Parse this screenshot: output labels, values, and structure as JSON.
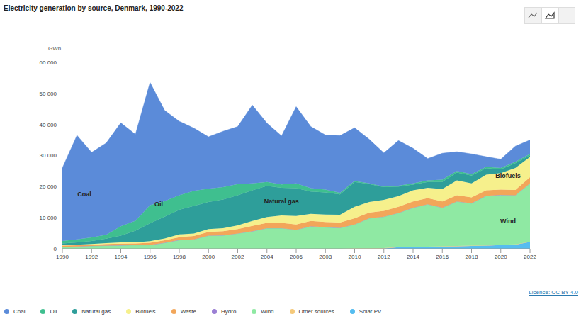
{
  "chart_data": {
    "type": "area",
    "title": "Electricity generation by source, Denmark, 1990-2022",
    "y_label": "GWh",
    "caption": "Licence: CC BY 4.0",
    "stacked": true,
    "grid": false,
    "legend": "bottom",
    "x": [
      1990,
      1991,
      1992,
      1993,
      1994,
      1995,
      1996,
      1997,
      1998,
      1999,
      2000,
      2001,
      2002,
      2003,
      2004,
      2005,
      2006,
      2007,
      2008,
      2009,
      2010,
      2011,
      2012,
      2013,
      2014,
      2015,
      2016,
      2017,
      2018,
      2019,
      2020,
      2021,
      2022
    ],
    "xlim": [
      1990,
      2022
    ],
    "xticks": [
      1990,
      1992,
      1994,
      1996,
      1998,
      2000,
      2002,
      2004,
      2006,
      2008,
      2010,
      2012,
      2014,
      2016,
      2018,
      2020,
      2022
    ],
    "ylim": [
      0,
      60000
    ],
    "yticks": [
      0,
      {
        "value": 10000,
        "label": "10 000"
      },
      {
        "value": 20000,
        "label": "20 000"
      },
      {
        "value": 30000,
        "label": "30 000"
      },
      {
        "value": 40000,
        "label": "40 000"
      },
      {
        "value": 50000,
        "label": "50 000"
      },
      {
        "value": 60000,
        "label": "60 000"
      }
    ],
    "series": [
      {
        "name": "Coal",
        "color": "#5b8bd9",
        "values": [
          23500,
          33500,
          27400,
          29500,
          33300,
          27800,
          39500,
          29200,
          23800,
          20200,
          16700,
          18000,
          18500,
          25200,
          18900,
          15600,
          24700,
          19800,
          17600,
          18400,
          17100,
          14200,
          10800,
          14500,
          11300,
          7000,
          8500,
          6200,
          6500,
          3300,
          2800,
          5000,
          4500
        ]
      },
      {
        "name": "Oil",
        "color": "#3fbf8f",
        "values": [
          800,
          1000,
          1100,
          1300,
          3000,
          3200,
          5800,
          5000,
          4700,
          4800,
          4300,
          4000,
          3600,
          2200,
          1300,
          1100,
          1500,
          1100,
          900,
          500,
          300,
          200,
          200,
          300,
          400,
          500,
          700,
          500,
          500,
          400,
          500,
          500,
          500
        ]
      },
      {
        "name": "Natural gas",
        "color": "#2e9e9a",
        "values": [
          500,
          700,
          1000,
          1400,
          2200,
          3800,
          5800,
          7000,
          7900,
          8900,
          8700,
          9200,
          9700,
          9900,
          10000,
          8900,
          9000,
          7200,
          7100,
          6600,
          8000,
          5800,
          4100,
          3100,
          1800,
          1900,
          2300,
          2500,
          2500,
          2100,
          1200,
          1500,
          500
        ]
      },
      {
        "name": "Biofuels",
        "color": "#f6f08c",
        "values": [
          200,
          200,
          300,
          300,
          400,
          300,
          500,
          600,
          900,
          800,
          900,
          1000,
          1200,
          1600,
          1900,
          2400,
          2700,
          2300,
          2400,
          2500,
          3700,
          3400,
          3500,
          3400,
          3600,
          3300,
          4000,
          4800,
          4500,
          5000,
          5300,
          7100,
          6500
        ]
      },
      {
        "name": "Waste",
        "color": "#f2a65a",
        "values": [
          400,
          400,
          300,
          500,
          500,
          500,
          700,
          800,
          900,
          1100,
          1200,
          1300,
          1400,
          1700,
          1700,
          1700,
          1700,
          1700,
          1700,
          1700,
          2000,
          1800,
          1900,
          2000,
          2000,
          2000,
          2000,
          2000,
          1900,
          1800,
          1700,
          1700,
          2000
        ]
      },
      {
        "name": "Hydro",
        "color": "#9b7fd4",
        "values": [
          30,
          30,
          30,
          30,
          30,
          30,
          30,
          30,
          30,
          30,
          30,
          30,
          30,
          30,
          30,
          30,
          30,
          30,
          30,
          30,
          30,
          30,
          30,
          30,
          30,
          30,
          30,
          30,
          30,
          30,
          30,
          30,
          30
        ]
      },
      {
        "name": "Wind",
        "color": "#8fe9a3",
        "values": [
          600,
          700,
          900,
          1000,
          1100,
          1200,
          1200,
          1900,
          2800,
          3000,
          4200,
          4300,
          4900,
          5600,
          6600,
          6600,
          6100,
          7200,
          6900,
          6700,
          7700,
          9700,
          10100,
          10900,
          12500,
          13600,
          12400,
          14300,
          13600,
          15900,
          16000,
          15800,
          18700
        ]
      },
      {
        "name": "Other sources",
        "color": "#f5c97a",
        "values": [
          0,
          0,
          0,
          0,
          0,
          0,
          0,
          0,
          0,
          0,
          0,
          0,
          0,
          0,
          0,
          0,
          0,
          0,
          0,
          0,
          100,
          100,
          100,
          100,
          100,
          100,
          100,
          100,
          100,
          100,
          100,
          100,
          100
        ]
      },
      {
        "name": "Solar PV",
        "color": "#56bdf0",
        "values": [
          0,
          0,
          0,
          0,
          0,
          0,
          0,
          0,
          0,
          0,
          0,
          0,
          0,
          0,
          0,
          0,
          0,
          0,
          0,
          0,
          0,
          0,
          100,
          500,
          600,
          600,
          700,
          800,
          900,
          1000,
          1200,
          1300,
          2200
        ]
      }
    ],
    "annotations": [
      {
        "text": "Coal",
        "x": 1991.5,
        "y": 17500
      },
      {
        "text": "Oil",
        "x": 1996.6,
        "y": 14500
      },
      {
        "text": "Natural gas",
        "x": 2005,
        "y": 15300
      },
      {
        "text": "Biofuels",
        "x": 2020.5,
        "y": 23500
      },
      {
        "text": "Wind",
        "x": 2020.5,
        "y": 9000
      }
    ]
  }
}
